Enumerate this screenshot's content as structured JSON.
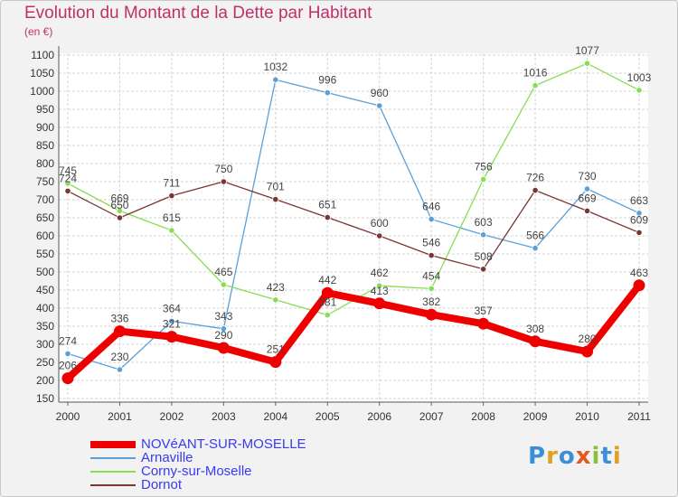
{
  "title": "Evolution du Montant de la Dette par Habitant",
  "unit_label": "(en €)",
  "logo_text": "Proxiti",
  "chart_data": {
    "type": "line",
    "title": "Evolution du Montant de la Dette par Habitant",
    "ylabel": "(en €)",
    "xlabel": "",
    "x": [
      "2000",
      "2001",
      "2002",
      "2003",
      "2004",
      "2005",
      "2006",
      "2007",
      "2008",
      "2009",
      "2010",
      "2011"
    ],
    "ylim": [
      150,
      1100
    ],
    "yticks": [
      150,
      200,
      250,
      300,
      350,
      400,
      450,
      500,
      550,
      600,
      650,
      700,
      750,
      800,
      850,
      900,
      950,
      1000,
      1050,
      1100
    ],
    "grid": true,
    "legend_position": "bottom-left",
    "series": [
      {
        "name": "NOVéANT-SUR-MOSELLE",
        "color": "#ee0000",
        "emphasis": true,
        "values": [
          206,
          336,
          321,
          290,
          251,
          442,
          413,
          382,
          357,
          308,
          280,
          463
        ]
      },
      {
        "name": "Arnaville",
        "color": "#5aa0d8",
        "values": [
          274,
          230,
          364,
          343,
          1032,
          996,
          960,
          646,
          603,
          566,
          730,
          663
        ]
      },
      {
        "name": "Corny-sur-Moselle",
        "color": "#88dd55",
        "values": [
          745,
          669,
          615,
          465,
          423,
          381,
          462,
          454,
          756,
          1016,
          1077,
          1003
        ]
      },
      {
        "name": "Dornot",
        "color": "#7a3535",
        "values": [
          724,
          650,
          711,
          750,
          701,
          651,
          600,
          546,
          508,
          726,
          669,
          609
        ]
      }
    ]
  }
}
